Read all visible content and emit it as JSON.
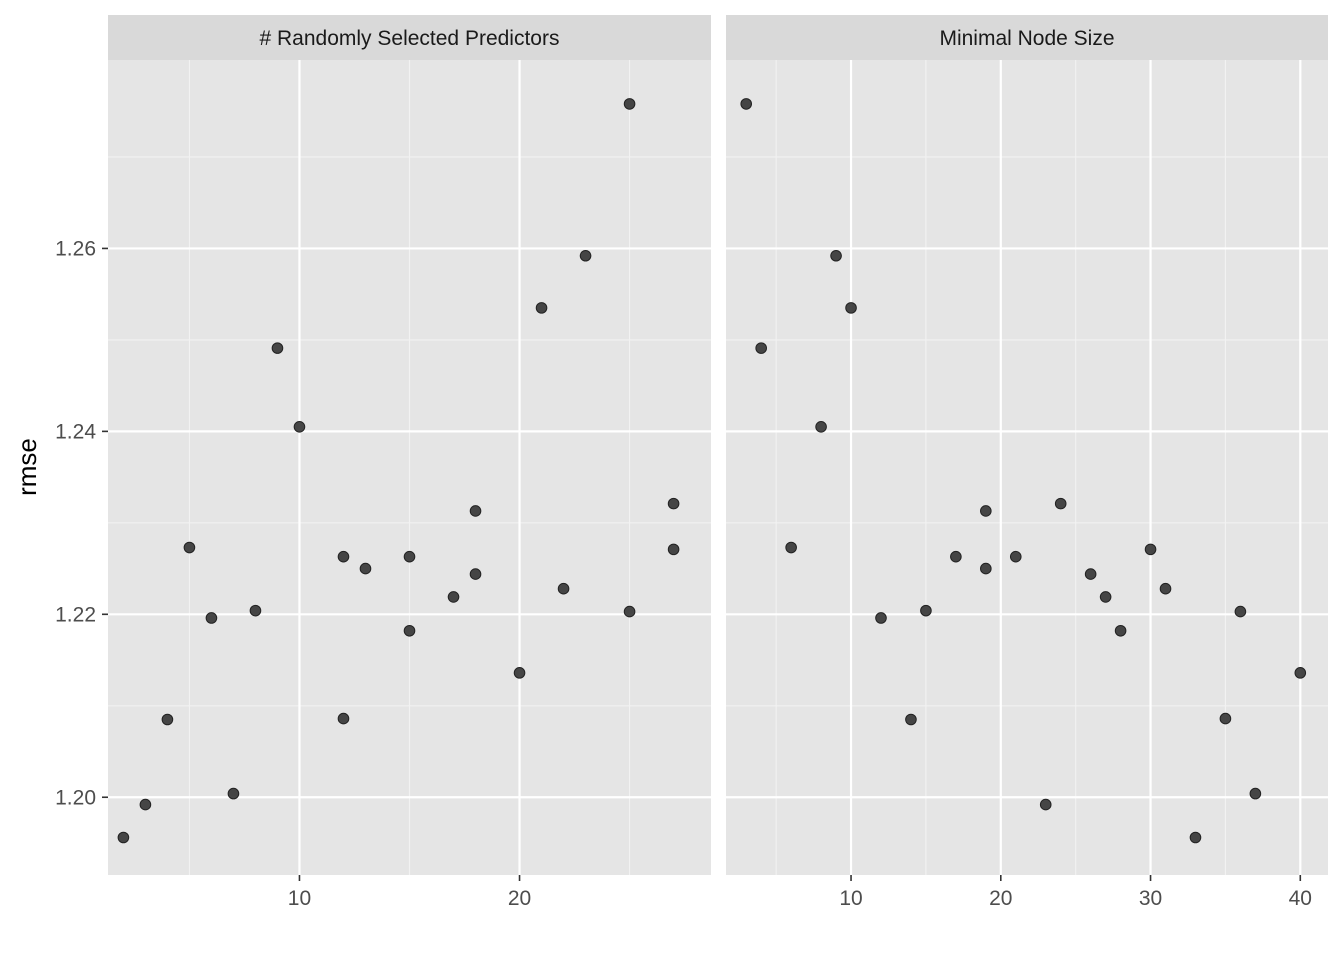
{
  "chart_data": {
    "type": "scatter",
    "ylabel": "rmse",
    "ylim": [
      1.1915,
      1.2806
    ],
    "y_ticks": [
      1.2,
      1.22,
      1.24,
      1.26
    ],
    "y_tick_labels": [
      "1.20",
      "1.22",
      "1.24",
      "1.26"
    ],
    "grid": true,
    "colors": {
      "panel": "#e5e5e5",
      "strip": "#d9d9d9",
      "point": "#333333"
    },
    "facets": [
      {
        "strip": "# Randomly Selected Predictors",
        "xlim": [
          1.3,
          28.7
        ],
        "x_ticks": [
          10,
          20
        ],
        "x_tick_labels": [
          "10",
          "20"
        ],
        "points": [
          {
            "x": 2,
            "y": 1.1956
          },
          {
            "x": 3,
            "y": 1.1992
          },
          {
            "x": 4,
            "y": 1.2085
          },
          {
            "x": 5,
            "y": 1.2273
          },
          {
            "x": 6,
            "y": 1.2196
          },
          {
            "x": 7,
            "y": 1.2004
          },
          {
            "x": 8,
            "y": 1.2204
          },
          {
            "x": 9,
            "y": 1.2491
          },
          {
            "x": 10,
            "y": 1.2405
          },
          {
            "x": 12,
            "y": 1.2263
          },
          {
            "x": 12,
            "y": 1.2086
          },
          {
            "x": 13,
            "y": 1.225
          },
          {
            "x": 15,
            "y": 1.2263
          },
          {
            "x": 15,
            "y": 1.2182
          },
          {
            "x": 17,
            "y": 1.2219
          },
          {
            "x": 18,
            "y": 1.2313
          },
          {
            "x": 18,
            "y": 1.2244
          },
          {
            "x": 20,
            "y": 1.2136
          },
          {
            "x": 21,
            "y": 1.2535
          },
          {
            "x": 22,
            "y": 1.2228
          },
          {
            "x": 23,
            "y": 1.2592
          },
          {
            "x": 25,
            "y": 1.2758
          },
          {
            "x": 25,
            "y": 1.2203
          },
          {
            "x": 27,
            "y": 1.2321
          },
          {
            "x": 27,
            "y": 1.2271
          }
        ]
      },
      {
        "strip": "Minimal Node Size",
        "xlim": [
          1.65,
          41.85
        ],
        "x_ticks": [
          10,
          20,
          30,
          40
        ],
        "x_tick_labels": [
          "10",
          "20",
          "30",
          "40"
        ],
        "points": [
          {
            "x": 3,
            "y": 1.2758
          },
          {
            "x": 4,
            "y": 1.2491
          },
          {
            "x": 6,
            "y": 1.2273
          },
          {
            "x": 8,
            "y": 1.2405
          },
          {
            "x": 9,
            "y": 1.2592
          },
          {
            "x": 10,
            "y": 1.2535
          },
          {
            "x": 12,
            "y": 1.2196
          },
          {
            "x": 14,
            "y": 1.2085
          },
          {
            "x": 15,
            "y": 1.2204
          },
          {
            "x": 17,
            "y": 1.2263
          },
          {
            "x": 19,
            "y": 1.2313
          },
          {
            "x": 19,
            "y": 1.225
          },
          {
            "x": 21,
            "y": 1.2263
          },
          {
            "x": 23,
            "y": 1.1992
          },
          {
            "x": 24,
            "y": 1.2321
          },
          {
            "x": 26,
            "y": 1.2244
          },
          {
            "x": 27,
            "y": 1.2219
          },
          {
            "x": 28,
            "y": 1.2182
          },
          {
            "x": 30,
            "y": 1.2271
          },
          {
            "x": 31,
            "y": 1.2228
          },
          {
            "x": 33,
            "y": 1.1956
          },
          {
            "x": 35,
            "y": 1.2086
          },
          {
            "x": 36,
            "y": 1.2203
          },
          {
            "x": 37,
            "y": 1.2004
          },
          {
            "x": 40,
            "y": 1.2136
          }
        ]
      }
    ]
  }
}
